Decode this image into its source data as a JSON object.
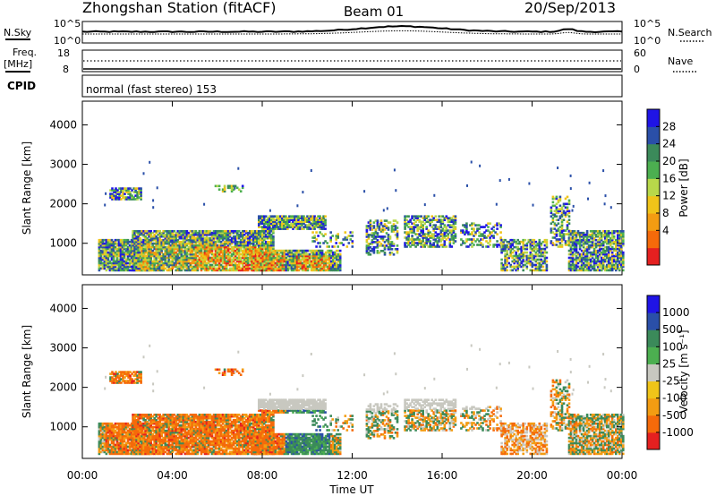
{
  "header": {
    "title": "Zhongshan Station (fitACF)",
    "beam": "Beam 01",
    "date": "20/Sep/2013"
  },
  "top_panels": {
    "nsky_label": "N.Sky",
    "nsearch_label": "N.Search",
    "n_ticks_left": [
      "10^5",
      "10^0"
    ],
    "n_ticks_right": [
      "10^5",
      "10^0"
    ],
    "freq_label_1": "Freq.",
    "freq_label_2": "[MHz]",
    "freq_ticks_left": [
      "18",
      "8"
    ],
    "nave_label": "Nave",
    "nave_ticks_right": [
      "60",
      "0"
    ],
    "cpid_label": "CPID",
    "cpid_text": "normal (fast stereo) 153"
  },
  "colors": {
    "power_scale": [
      "#1f14e6",
      "#2a4fa8",
      "#3b8a5a",
      "#4caf50",
      "#b8d84a",
      "#f0c419",
      "#f39c12",
      "#f56a0a",
      "#e52020"
    ],
    "velocity_scale": [
      "#1f14e6",
      "#2a4fa8",
      "#3b8a5a",
      "#4caf50",
      "#c8c8c0",
      "#f0c419",
      "#f39c12",
      "#f56a0a",
      "#e52020"
    ]
  },
  "chart_data": [
    {
      "type": "heatmap",
      "name": "power",
      "ylabel": "Slant Range [km]",
      "yticks": [
        "4000",
        "3000",
        "2000",
        "1000"
      ],
      "ylim": [
        200,
        4600
      ],
      "xticks": [
        "00:00",
        "04:00",
        "08:00",
        "12:00",
        "16:00",
        "20:00",
        "00:00"
      ],
      "xlim": [
        0,
        24
      ],
      "colorbar_label": "Power [dB]",
      "colorbar_ticks": [
        "28",
        "24",
        "20",
        "16",
        "12",
        "8",
        "4"
      ],
      "clim": [
        0,
        30
      ]
    },
    {
      "type": "heatmap",
      "name": "velocity",
      "ylabel": "Slant Range [km]",
      "yticks": [
        "4000",
        "3000",
        "2000",
        "1000"
      ],
      "ylim": [
        200,
        4600
      ],
      "xticks": [
        "00:00",
        "04:00",
        "08:00",
        "12:00",
        "16:00",
        "20:00",
        "00:00"
      ],
      "xlabel": "Time UT",
      "xlim": [
        0,
        24
      ],
      "colorbar_label": "Velocity [m s⁻¹]",
      "colorbar_ticks": [
        "1000",
        "500",
        "100",
        "25",
        "-25",
        "-100",
        "-500",
        "-1000"
      ]
    }
  ]
}
